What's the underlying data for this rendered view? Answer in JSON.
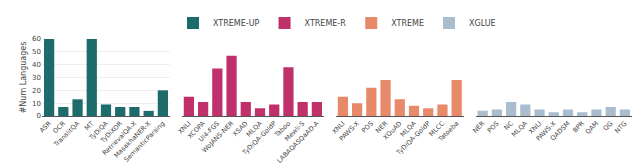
{
  "chart_data": [
    {
      "type": "bar",
      "ylabel": "#Num Languages",
      "categories": [
        "ASR",
        "OCR",
        "TranslitQA",
        "MT",
        "TyDiQA",
        "TyDiXOR",
        "RetrievalQA-X",
        "MasakhaNER-X",
        "SemanticParsing"
      ],
      "series": [
        {
          "name": "XTREME-UP",
          "color": "#1e6b6b",
          "values": [
            60,
            7,
            13,
            60,
            9,
            7,
            7,
            4,
            20
          ]
        }
      ],
      "ylim": [
        0,
        60
      ],
      "yticks": [
        0,
        10,
        20,
        30,
        40,
        50,
        60
      ],
      "grid": true,
      "legend": "top"
    },
    {
      "type": "bar",
      "categories": [
        "XNLI",
        "XCOPA",
        "Ul4-FGS",
        "WoJANS-NER",
        "XSAD",
        "MLQA",
        "TyDiQA-GoldP",
        "Taboo",
        "Mewli-S",
        "LABAQASQaAD-A"
      ],
      "series": [
        {
          "name": "XTREME-R",
          "color": "#c0306a",
          "values": [
            15,
            11,
            37,
            47,
            11,
            6,
            9,
            38,
            11,
            11
          ]
        }
      ],
      "ylim": [
        0,
        60
      ],
      "yticks": [],
      "tick_labels": "x",
      "legend": "top"
    },
    {
      "type": "bar",
      "categories": [
        "XNLI",
        "PAWS-X",
        "POS",
        "NER",
        "XQuAD",
        "MLQA",
        "TyDiQA-GoldP",
        "MLCC",
        "Tatoeba"
      ],
      "series": [
        {
          "name": "XTREME",
          "color": "#e8896a",
          "values": [
            15,
            10,
            22,
            28,
            13,
            8,
            6,
            9,
            28
          ]
        }
      ],
      "ylim": [
        0,
        60
      ],
      "yticks": [],
      "tick_labels": "x",
      "legend": "top"
    },
    {
      "type": "bar",
      "categories": [
        "NER",
        "POS",
        "NC",
        "MLQA",
        "XNLI",
        "PAWS-X",
        "QADSM",
        "BPR",
        "QAM",
        "QG",
        "NTG"
      ],
      "series": [
        {
          "name": "XGLUE",
          "color": "#aabdce",
          "values": [
            4,
            5,
            11,
            9,
            5,
            3,
            5,
            3,
            5,
            7,
            5
          ]
        }
      ],
      "ylim": [
        0,
        60
      ],
      "yticks": [],
      "tick_labels": "x",
      "legend": "top"
    }
  ]
}
